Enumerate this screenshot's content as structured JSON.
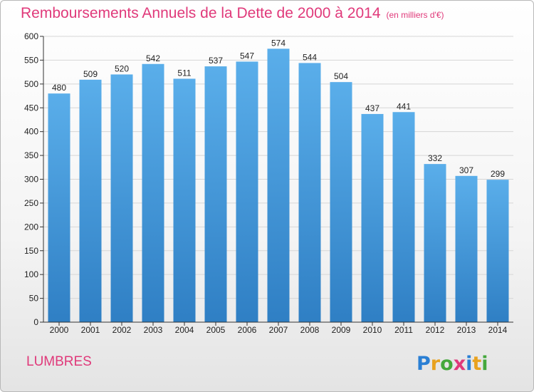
{
  "chart_data": {
    "type": "bar",
    "title": "Remboursements Annuels de la Dette de 2000 à 2014",
    "subtitle": "(en milliers d'€)",
    "xlabel": "",
    "ylabel": "",
    "categories": [
      "2000",
      "2001",
      "2002",
      "2003",
      "2004",
      "2005",
      "2006",
      "2007",
      "2008",
      "2009",
      "2010",
      "2011",
      "2012",
      "2013",
      "2014"
    ],
    "values": [
      480,
      509,
      520,
      542,
      511,
      537,
      547,
      574,
      544,
      504,
      437,
      441,
      332,
      307,
      299
    ],
    "ylim": [
      0,
      600
    ],
    "yticks": [
      0,
      50,
      100,
      150,
      200,
      250,
      300,
      350,
      400,
      450,
      500,
      550,
      600
    ],
    "grid": true,
    "bar_color_top": "#5aaeea",
    "bar_color_bottom": "#2f7fc4"
  },
  "commune": "LUMBRES",
  "logo": {
    "text": "Proxiti",
    "letter_colors": [
      "#2a7fd4",
      "#e8a21f",
      "#45a83c",
      "#e0397a",
      "#2a7fd4",
      "#e8a21f",
      "#45a83c"
    ]
  },
  "colors": {
    "title": "#e0397a",
    "axis": "#333333",
    "grid": "#d6d6d6"
  }
}
